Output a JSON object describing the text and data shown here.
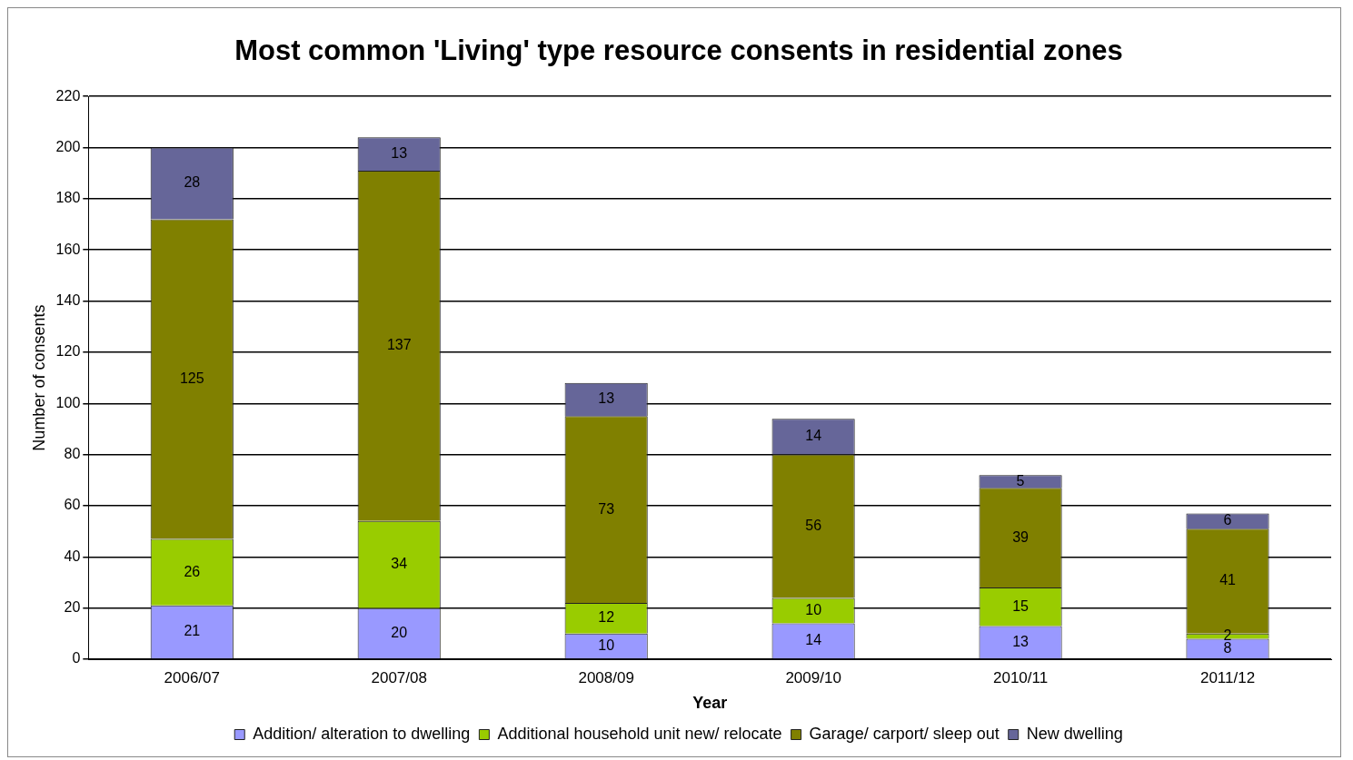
{
  "chart_data": {
    "type": "bar",
    "title": "Most common 'Living' type resource consents in residential zones",
    "xlabel": "Year",
    "ylabel": "Number of consents",
    "categories": [
      "2006/07",
      "2007/08",
      "2008/09",
      "2009/10",
      "2010/11",
      "2011/12"
    ],
    "stacked": true,
    "series": [
      {
        "name": "Addition/ alteration to dwelling",
        "color": "#9999ff",
        "values": [
          21,
          20,
          10,
          14,
          13,
          8
        ]
      },
      {
        "name": "Additional household unit new/ relocate",
        "color": "#99cc00",
        "values": [
          26,
          34,
          12,
          10,
          15,
          2
        ]
      },
      {
        "name": "Garage/ carport/ sleep out",
        "color": "#808000",
        "values": [
          125,
          137,
          73,
          56,
          39,
          41
        ]
      },
      {
        "name": "New dwelling",
        "color": "#666699",
        "values": [
          28,
          13,
          13,
          14,
          5,
          6
        ]
      }
    ],
    "ylim": [
      0,
      220
    ],
    "yticks": [
      0,
      20,
      40,
      60,
      80,
      100,
      120,
      140,
      160,
      180,
      200,
      220
    ],
    "grid": "y",
    "legend": "bottom",
    "data_labels": true
  }
}
